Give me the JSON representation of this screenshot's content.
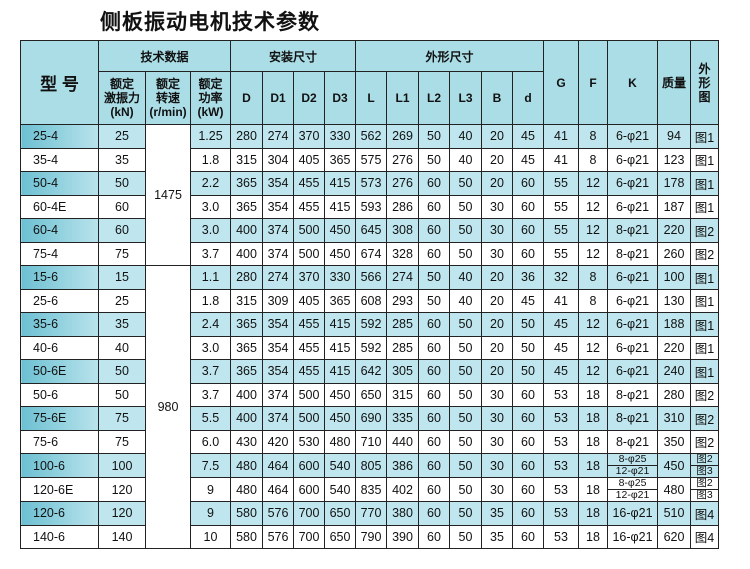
{
  "title": "侧板振动电机技术参数",
  "header": {
    "type": "型 号",
    "tech": "技术数据",
    "install": "安装尺寸",
    "outline": "外形尺寸",
    "force": [
      "额定",
      "激振力",
      "(kN)"
    ],
    "speed": [
      "额定",
      "转速",
      "(r/min)"
    ],
    "power": [
      "额定",
      "功率",
      "(kW)"
    ],
    "install_cols": [
      "D",
      "D1",
      "D2",
      "D3"
    ],
    "outline_cols": [
      "L",
      "L1",
      "L2",
      "L3",
      "B",
      "d"
    ],
    "G": "G",
    "F": "F",
    "K": "K",
    "mass": "质量",
    "fig": "外形图"
  },
  "speed_groups": [
    "1475",
    "980"
  ],
  "colors": {
    "header": "#aadde6",
    "row_band": "#bfe6ee",
    "model_band": "#6cc0d2"
  },
  "rows": [
    {
      "model": "25-4",
      "force": "25",
      "power": "1.25",
      "D": "280",
      "D1": "274",
      "D2": "370",
      "D3": "330",
      "L": "562",
      "L1": "269",
      "L2": "50",
      "L3": "40",
      "B": "20",
      "d": "45",
      "G": "41",
      "F": "8",
      "K": [
        "6-φ21"
      ],
      "mass": "94",
      "fig": [
        "图1"
      ]
    },
    {
      "model": "35-4",
      "force": "35",
      "power": "1.8",
      "D": "315",
      "D1": "304",
      "D2": "405",
      "D3": "365",
      "L": "575",
      "L1": "276",
      "L2": "50",
      "L3": "40",
      "B": "20",
      "d": "45",
      "G": "41",
      "F": "8",
      "K": [
        "6-φ21"
      ],
      "mass": "123",
      "fig": [
        "图1"
      ]
    },
    {
      "model": "50-4",
      "force": "50",
      "power": "2.2",
      "D": "365",
      "D1": "354",
      "D2": "455",
      "D3": "415",
      "L": "573",
      "L1": "276",
      "L2": "60",
      "L3": "50",
      "B": "20",
      "d": "60",
      "G": "55",
      "F": "12",
      "K": [
        "6-φ21"
      ],
      "mass": "178",
      "fig": [
        "图1"
      ]
    },
    {
      "model": "60-4E",
      "force": "60",
      "power": "3.0",
      "D": "365",
      "D1": "354",
      "D2": "455",
      "D3": "415",
      "L": "593",
      "L1": "286",
      "L2": "60",
      "L3": "50",
      "B": "30",
      "d": "60",
      "G": "55",
      "F": "12",
      "K": [
        "6-φ21"
      ],
      "mass": "187",
      "fig": [
        "图1"
      ]
    },
    {
      "model": "60-4",
      "force": "60",
      "power": "3.0",
      "D": "400",
      "D1": "374",
      "D2": "500",
      "D3": "450",
      "L": "645",
      "L1": "308",
      "L2": "60",
      "L3": "50",
      "B": "30",
      "d": "60",
      "G": "55",
      "F": "12",
      "K": [
        "8-φ21"
      ],
      "mass": "220",
      "fig": [
        "图2"
      ]
    },
    {
      "model": "75-4",
      "force": "75",
      "power": "3.7",
      "D": "400",
      "D1": "374",
      "D2": "500",
      "D3": "450",
      "L": "674",
      "L1": "328",
      "L2": "60",
      "L3": "50",
      "B": "30",
      "d": "60",
      "G": "55",
      "F": "12",
      "K": [
        "8-φ21"
      ],
      "mass": "260",
      "fig": [
        "图2"
      ]
    },
    {
      "model": "15-6",
      "force": "15",
      "power": "1.1",
      "D": "280",
      "D1": "274",
      "D2": "370",
      "D3": "330",
      "L": "566",
      "L1": "274",
      "L2": "50",
      "L3": "40",
      "B": "20",
      "d": "36",
      "G": "32",
      "F": "8",
      "K": [
        "6-φ21"
      ],
      "mass": "100",
      "fig": [
        "图1"
      ]
    },
    {
      "model": "25-6",
      "force": "25",
      "power": "1.8",
      "D": "315",
      "D1": "309",
      "D2": "405",
      "D3": "365",
      "L": "608",
      "L1": "293",
      "L2": "50",
      "L3": "40",
      "B": "20",
      "d": "45",
      "G": "41",
      "F": "8",
      "K": [
        "6-φ21"
      ],
      "mass": "130",
      "fig": [
        "图1"
      ]
    },
    {
      "model": "35-6",
      "force": "35",
      "power": "2.4",
      "D": "365",
      "D1": "354",
      "D2": "455",
      "D3": "415",
      "L": "592",
      "L1": "285",
      "L2": "60",
      "L3": "50",
      "B": "20",
      "d": "50",
      "G": "45",
      "F": "12",
      "K": [
        "6-φ21"
      ],
      "mass": "188",
      "fig": [
        "图1"
      ]
    },
    {
      "model": "40-6",
      "force": "40",
      "power": "3.0",
      "D": "365",
      "D1": "354",
      "D2": "455",
      "D3": "415",
      "L": "592",
      "L1": "285",
      "L2": "60",
      "L3": "50",
      "B": "20",
      "d": "50",
      "G": "45",
      "F": "12",
      "K": [
        "6-φ21"
      ],
      "mass": "220",
      "fig": [
        "图1"
      ]
    },
    {
      "model": "50-6E",
      "force": "50",
      "power": "3.7",
      "D": "365",
      "D1": "354",
      "D2": "455",
      "D3": "415",
      "L": "642",
      "L1": "305",
      "L2": "60",
      "L3": "50",
      "B": "20",
      "d": "50",
      "G": "45",
      "F": "12",
      "K": [
        "6-φ21"
      ],
      "mass": "240",
      "fig": [
        "图1"
      ]
    },
    {
      "model": "50-6",
      "force": "50",
      "power": "3.7",
      "D": "400",
      "D1": "374",
      "D2": "500",
      "D3": "450",
      "L": "650",
      "L1": "315",
      "L2": "60",
      "L3": "50",
      "B": "30",
      "d": "60",
      "G": "53",
      "F": "18",
      "K": [
        "8-φ21"
      ],
      "mass": "280",
      "fig": [
        "图2"
      ]
    },
    {
      "model": "75-6E",
      "force": "75",
      "power": "5.5",
      "D": "400",
      "D1": "374",
      "D2": "500",
      "D3": "450",
      "L": "690",
      "L1": "335",
      "L2": "60",
      "L3": "50",
      "B": "30",
      "d": "60",
      "G": "53",
      "F": "18",
      "K": [
        "8-φ21"
      ],
      "mass": "310",
      "fig": [
        "图2"
      ]
    },
    {
      "model": "75-6",
      "force": "75",
      "power": "6.0",
      "D": "430",
      "D1": "420",
      "D2": "530",
      "D3": "480",
      "L": "710",
      "L1": "440",
      "L2": "60",
      "L3": "50",
      "B": "30",
      "d": "60",
      "G": "53",
      "F": "18",
      "K": [
        "8-φ21"
      ],
      "mass": "350",
      "fig": [
        "图2"
      ]
    },
    {
      "model": "100-6",
      "force": "100",
      "power": "7.5",
      "D": "480",
      "D1": "464",
      "D2": "600",
      "D3": "540",
      "L": "805",
      "L1": "386",
      "L2": "60",
      "L3": "50",
      "B": "30",
      "d": "60",
      "G": "53",
      "F": "18",
      "K": [
        "8-φ25",
        "12-φ21"
      ],
      "mass": "450",
      "fig": [
        "图2",
        "图3"
      ]
    },
    {
      "model": "120-6E",
      "force": "120",
      "power": "9",
      "D": "480",
      "D1": "464",
      "D2": "600",
      "D3": "540",
      "L": "835",
      "L1": "402",
      "L2": "60",
      "L3": "50",
      "B": "30",
      "d": "60",
      "G": "53",
      "F": "18",
      "K": [
        "8-φ25",
        "12-φ21"
      ],
      "mass": "480",
      "fig": [
        "图2",
        "图3"
      ]
    },
    {
      "model": "120-6",
      "force": "120",
      "power": "9",
      "D": "580",
      "D1": "576",
      "D2": "700",
      "D3": "650",
      "L": "770",
      "L1": "380",
      "L2": "60",
      "L3": "50",
      "B": "35",
      "d": "60",
      "G": "53",
      "F": "18",
      "K": [
        "16-φ21"
      ],
      "mass": "510",
      "fig": [
        "图4"
      ]
    },
    {
      "model": "140-6",
      "force": "140",
      "power": "10",
      "D": "580",
      "D1": "576",
      "D2": "700",
      "D3": "650",
      "L": "790",
      "L1": "390",
      "L2": "60",
      "L3": "50",
      "B": "35",
      "d": "60",
      "G": "53",
      "F": "18",
      "K": [
        "16-φ21"
      ],
      "mass": "620",
      "fig": [
        "图4"
      ]
    }
  ]
}
